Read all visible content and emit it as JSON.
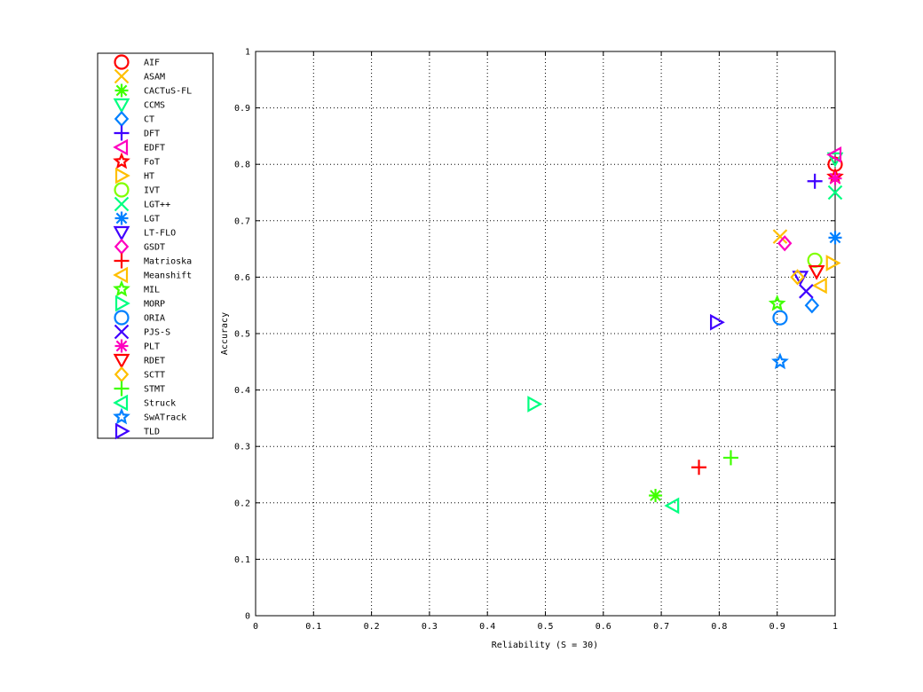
{
  "chart_data": {
    "type": "scatter",
    "xlabel": "Reliability (S = 30)",
    "ylabel": "Accuracy",
    "xlim": [
      0,
      1
    ],
    "ylim": [
      0,
      1
    ],
    "x_ticks": [
      "0",
      "0.1",
      "0.2",
      "0.3",
      "0.4",
      "0.5",
      "0.6",
      "0.7",
      "0.8",
      "0.9",
      "1"
    ],
    "y_ticks": [
      "0",
      "0.1",
      "0.2",
      "0.3",
      "0.4",
      "0.5",
      "0.6",
      "0.7",
      "0.8",
      "0.9",
      "1"
    ],
    "grid": true,
    "legend_position": "left-outside-top",
    "series": [
      {
        "name": "AIF",
        "marker": "circle",
        "color": "#ff0000",
        "x": 1.0,
        "y": 0.8
      },
      {
        "name": "ASAM",
        "marker": "x",
        "color": "#ffbf00",
        "x": 0.905,
        "y": 0.672
      },
      {
        "name": "CACTuS-FL",
        "marker": "asterisk",
        "color": "#40ff00",
        "x": 0.69,
        "y": 0.213
      },
      {
        "name": "CCMS",
        "marker": "triangle-down",
        "color": "#00ff80",
        "x": 1.0,
        "y": 0.81
      },
      {
        "name": "CT",
        "marker": "diamond",
        "color": "#0080ff",
        "x": 0.96,
        "y": 0.55
      },
      {
        "name": "DFT",
        "marker": "plus",
        "color": "#4000ff",
        "x": 0.965,
        "y": 0.77
      },
      {
        "name": "EDFT",
        "marker": "triangle-left",
        "color": "#ff00bf",
        "x": 1.0,
        "y": 0.817
      },
      {
        "name": "FoT",
        "marker": "star",
        "color": "#ff0000",
        "x": 1.0,
        "y": 0.778
      },
      {
        "name": "HT",
        "marker": "triangle-right",
        "color": "#ffbf00",
        "x": 0.995,
        "y": 0.625
      },
      {
        "name": "IVT",
        "marker": "circle",
        "color": "#80ff00",
        "x": 0.965,
        "y": 0.63
      },
      {
        "name": "LGT++",
        "marker": "x",
        "color": "#00ff80",
        "x": 1.0,
        "y": 0.75
      },
      {
        "name": "LGT",
        "marker": "asterisk",
        "color": "#0080ff",
        "x": 1.0,
        "y": 0.67
      },
      {
        "name": "LT-FLO",
        "marker": "triangle-down",
        "color": "#4000ff",
        "x": 0.94,
        "y": 0.6
      },
      {
        "name": "GSDT",
        "marker": "diamond",
        "color": "#ff00bf",
        "x": 0.913,
        "y": 0.66
      },
      {
        "name": "Matrioska",
        "marker": "plus",
        "color": "#ff0000",
        "x": 0.765,
        "y": 0.263
      },
      {
        "name": "Meanshift",
        "marker": "triangle-left",
        "color": "#ffbf00",
        "x": 0.975,
        "y": 0.585
      },
      {
        "name": "MIL",
        "marker": "star",
        "color": "#40ff00",
        "x": 0.9,
        "y": 0.553
      },
      {
        "name": "MORP",
        "marker": "triangle-right",
        "color": "#00ff80",
        "x": 0.48,
        "y": 0.375
      },
      {
        "name": "ORIA",
        "marker": "circle",
        "color": "#0080ff",
        "x": 0.905,
        "y": 0.528
      },
      {
        "name": "PJS-S",
        "marker": "x",
        "color": "#4000ff",
        "x": 0.95,
        "y": 0.575
      },
      {
        "name": "PLT",
        "marker": "asterisk",
        "color": "#ff00bf",
        "x": 1.0,
        "y": 0.775
      },
      {
        "name": "RDET",
        "marker": "triangle-down",
        "color": "#ff0000",
        "x": 0.968,
        "y": 0.61
      },
      {
        "name": "SCTT",
        "marker": "diamond",
        "color": "#ffbf00",
        "x": 0.935,
        "y": 0.6
      },
      {
        "name": "STMT",
        "marker": "plus",
        "color": "#40ff00",
        "x": 0.82,
        "y": 0.28
      },
      {
        "name": "Struck",
        "marker": "triangle-left",
        "color": "#00ff80",
        "x": 0.72,
        "y": 0.195
      },
      {
        "name": "SwATrack",
        "marker": "star",
        "color": "#0080ff",
        "x": 0.905,
        "y": 0.45
      },
      {
        "name": "TLD",
        "marker": "triangle-right",
        "color": "#4000ff",
        "x": 0.795,
        "y": 0.52
      }
    ]
  }
}
